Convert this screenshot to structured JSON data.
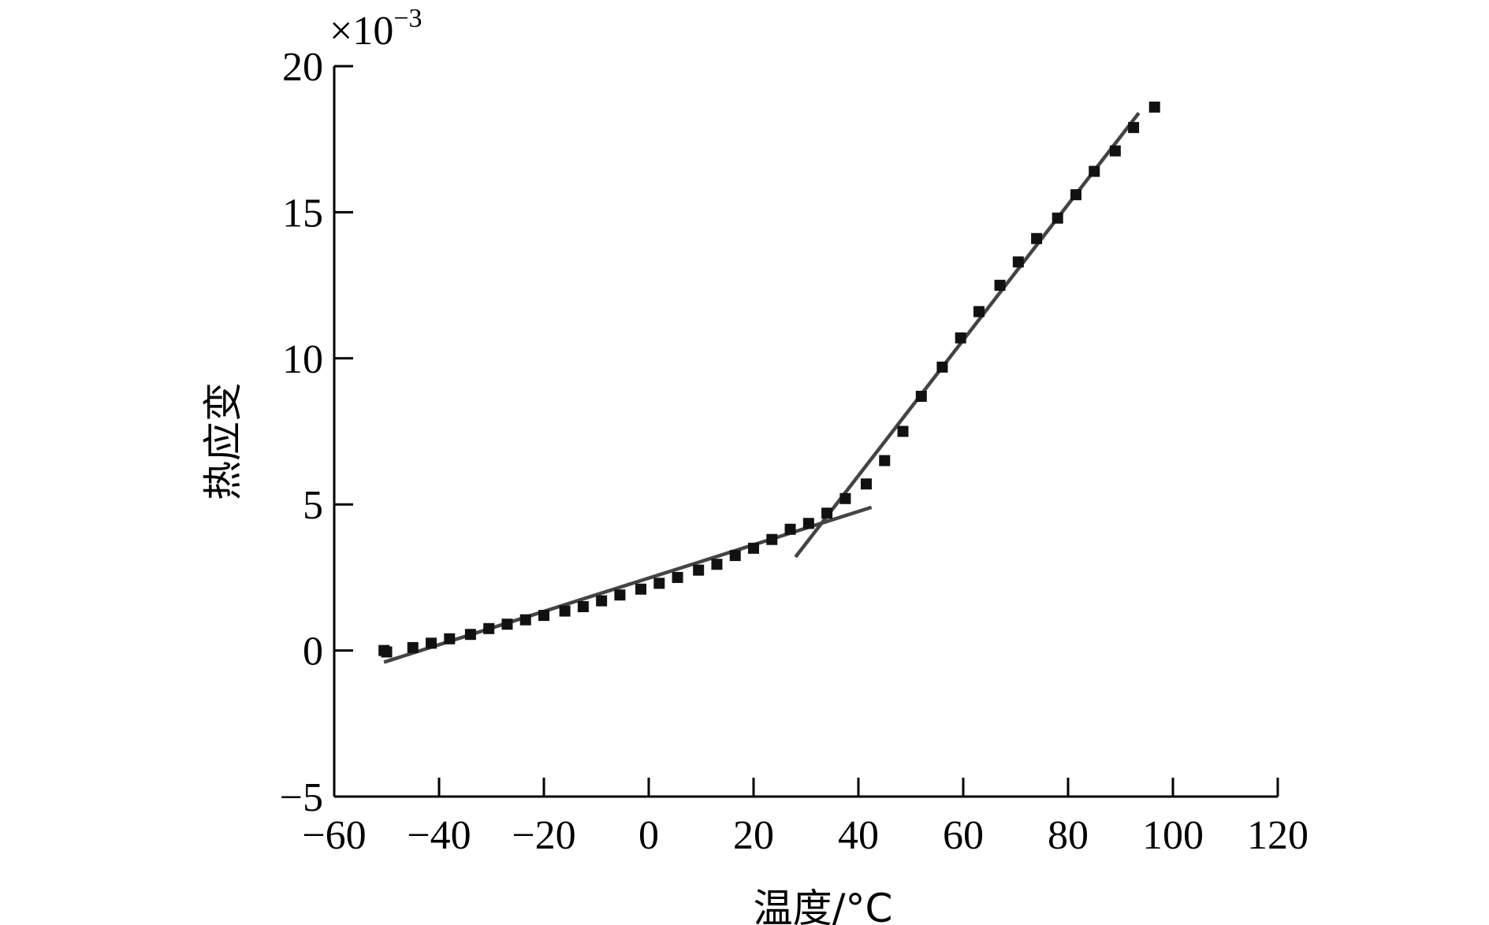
{
  "chart_data": {
    "type": "scatter",
    "title": "",
    "xlabel": "温度/°C",
    "ylabel": "热应变",
    "y_multiplier": {
      "base": "×10",
      "exponent": "−3"
    },
    "xlim": [
      -60,
      120
    ],
    "ylim": [
      -5,
      20
    ],
    "x_ticks": [
      -60,
      -40,
      -20,
      0,
      20,
      40,
      60,
      80,
      100,
      120
    ],
    "x_tick_labels": [
      "−60",
      "−40",
      "−20",
      "0",
      "20",
      "40",
      "60",
      "80",
      "100",
      "120"
    ],
    "y_ticks": [
      -5,
      0,
      5,
      10,
      15,
      20
    ],
    "y_tick_labels": [
      "−5",
      "0",
      "5",
      "10",
      "15",
      "20"
    ],
    "grid": false,
    "series": [
      {
        "kind": "points",
        "marker": "square",
        "color": "#111111",
        "points": [
          [
            -50.5,
            0.0
          ],
          [
            -50,
            -0.05
          ],
          [
            -45,
            0.1
          ],
          [
            -41.5,
            0.25
          ],
          [
            -38,
            0.4
          ],
          [
            -34,
            0.55
          ],
          [
            -30.5,
            0.75
          ],
          [
            -27,
            0.9
          ],
          [
            -23.5,
            1.05
          ],
          [
            -20,
            1.2
          ],
          [
            -16,
            1.35
          ],
          [
            -12.5,
            1.5
          ],
          [
            -9,
            1.7
          ],
          [
            -5.5,
            1.9
          ],
          [
            -1.5,
            2.1
          ],
          [
            2,
            2.3
          ],
          [
            5.5,
            2.5
          ],
          [
            9.5,
            2.75
          ],
          [
            13,
            2.95
          ],
          [
            16.5,
            3.25
          ],
          [
            20,
            3.5
          ],
          [
            23.5,
            3.8
          ],
          [
            27,
            4.15
          ],
          [
            30.5,
            4.35
          ],
          [
            34,
            4.7
          ],
          [
            37.5,
            5.2
          ],
          [
            41.5,
            5.7
          ],
          [
            45,
            6.5
          ],
          [
            48.5,
            7.5
          ],
          [
            52,
            8.7
          ],
          [
            56,
            9.7
          ],
          [
            59.5,
            10.7
          ],
          [
            63,
            11.6
          ],
          [
            67,
            12.5
          ],
          [
            70.5,
            13.3
          ],
          [
            74,
            14.1
          ],
          [
            78,
            14.8
          ],
          [
            81.5,
            15.6
          ],
          [
            85,
            16.4
          ],
          [
            89,
            17.1
          ],
          [
            92.5,
            17.9
          ],
          [
            96.5,
            18.6
          ]
        ]
      },
      {
        "kind": "fit-line",
        "color": "#444444",
        "points": [
          [
            -50.5,
            -0.4
          ],
          [
            42.5,
            4.9
          ]
        ]
      },
      {
        "kind": "fit-line",
        "color": "#444444",
        "points": [
          [
            28,
            3.2
          ],
          [
            93.5,
            18.4
          ]
        ]
      }
    ]
  }
}
